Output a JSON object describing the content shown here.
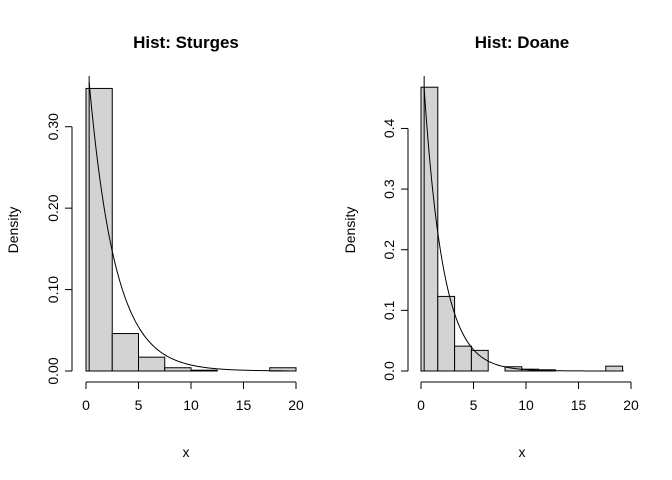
{
  "chart_data": [
    {
      "type": "bar",
      "title": "Hist: Sturges",
      "xlabel": "x",
      "ylabel": "Density",
      "xlim": [
        0,
        20
      ],
      "ylim": [
        0,
        0.35
      ],
      "xticks": [
        0,
        5,
        10,
        15,
        20
      ],
      "yticks": [
        0.0,
        0.1,
        0.2,
        0.3
      ],
      "ytick_labels": [
        "0.00",
        "0.10",
        "0.20",
        "0.30"
      ],
      "bins": [
        {
          "x0": 0.0,
          "x1": 2.5,
          "density": 0.347
        },
        {
          "x0": 2.5,
          "x1": 5.0,
          "density": 0.046
        },
        {
          "x0": 5.0,
          "x1": 7.5,
          "density": 0.017
        },
        {
          "x0": 7.5,
          "x1": 10.0,
          "density": 0.004
        },
        {
          "x0": 10.0,
          "x1": 12.5,
          "density": 0.001
        },
        {
          "x0": 12.5,
          "x1": 15.0,
          "density": 0.0
        },
        {
          "x0": 15.0,
          "x1": 17.5,
          "density": 0.0
        },
        {
          "x0": 17.5,
          "x1": 20.0,
          "density": 0.004
        }
      ],
      "curve": {
        "type": "exponential",
        "rate": 0.4,
        "x_from": 0.3,
        "x_to": 19.3
      }
    },
    {
      "type": "bar",
      "title": "Hist: Doane",
      "xlabel": "x",
      "ylabel": "Density",
      "xlim": [
        0,
        20
      ],
      "ylim": [
        0,
        0.47
      ],
      "xticks": [
        0,
        5,
        10,
        15,
        20
      ],
      "yticks": [
        0.0,
        0.1,
        0.2,
        0.3,
        0.4
      ],
      "ytick_labels": [
        "0.0",
        "0.1",
        "0.2",
        "0.3",
        "0.4"
      ],
      "bins": [
        {
          "x0": 0.0,
          "x1": 1.6,
          "density": 0.468
        },
        {
          "x0": 1.6,
          "x1": 3.2,
          "density": 0.123
        },
        {
          "x0": 3.2,
          "x1": 4.8,
          "density": 0.041
        },
        {
          "x0": 4.8,
          "x1": 6.4,
          "density": 0.034
        },
        {
          "x0": 6.4,
          "x1": 8.0,
          "density": 0.0
        },
        {
          "x0": 8.0,
          "x1": 9.6,
          "density": 0.007
        },
        {
          "x0": 9.6,
          "x1": 11.2,
          "density": 0.003
        },
        {
          "x0": 11.2,
          "x1": 12.8,
          "density": 0.002
        },
        {
          "x0": 12.8,
          "x1": 14.4,
          "density": 0.0
        },
        {
          "x0": 14.4,
          "x1": 16.0,
          "density": 0.0
        },
        {
          "x0": 16.0,
          "x1": 17.6,
          "density": 0.0
        },
        {
          "x0": 17.6,
          "x1": 19.2,
          "density": 0.008
        }
      ],
      "curve": {
        "type": "exponential",
        "rate": 0.55,
        "x_from": 0.3,
        "x_to": 19.3
      }
    }
  ],
  "colors": {
    "bar_fill": "#d3d3d3",
    "stroke": "#000000",
    "background": "#ffffff"
  }
}
